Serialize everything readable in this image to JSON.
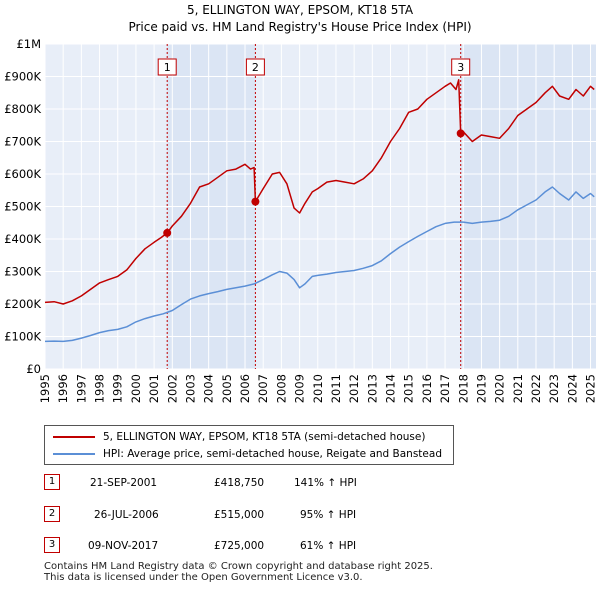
{
  "chart_data": {
    "type": "line",
    "title": "5, ELLINGTON WAY, EPSOM, KT18 5TA",
    "subtitle": "Price paid vs. HM Land Registry's House Price Index (HPI)",
    "xlabel": "",
    "ylabel": "",
    "xlim": [
      1995.0,
      2025.3
    ],
    "ylim": [
      0,
      1000000
    ],
    "grid": true,
    "y_ticks": [
      0,
      100000,
      200000,
      300000,
      400000,
      500000,
      600000,
      700000,
      800000,
      900000,
      1000000
    ],
    "y_tick_labels": [
      "£0",
      "£100K",
      "£200K",
      "£300K",
      "£400K",
      "£500K",
      "£600K",
      "£700K",
      "£800K",
      "£900K",
      "£1M"
    ],
    "x_ticks": [
      1995,
      1996,
      1997,
      1998,
      1999,
      2000,
      2001,
      2002,
      2003,
      2004,
      2005,
      2006,
      2007,
      2008,
      2009,
      2010,
      2011,
      2012,
      2013,
      2014,
      2015,
      2016,
      2017,
      2018,
      2019,
      2020,
      2021,
      2022,
      2023,
      2024,
      2025
    ],
    "x_tick_labels": [
      "1995",
      "1996",
      "1997",
      "1998",
      "1999",
      "2000",
      "2001",
      "2002",
      "2003",
      "2004",
      "2005",
      "2006",
      "2007",
      "2008",
      "2009",
      "2010",
      "2011",
      "2012",
      "2013",
      "2014",
      "2015",
      "2016",
      "2017",
      "2018",
      "2019",
      "2020",
      "2021",
      "2022",
      "2023",
      "2024",
      "2025"
    ],
    "series": [
      {
        "name": "5, ELLINGTON WAY, EPSOM, KT18 5TA (semi-detached house)",
        "color": "#c00000",
        "x": [
          1995.0,
          1995.5,
          1996.0,
          1996.5,
          1997.0,
          1997.5,
          1998.0,
          1998.5,
          1999.0,
          1999.5,
          2000.0,
          2000.5,
          2001.0,
          2001.4,
          2001.72,
          2002.0,
          2002.5,
          2003.0,
          2003.5,
          2004.0,
          2004.5,
          2005.0,
          2005.5,
          2006.0,
          2006.3,
          2006.5,
          2006.57,
          2007.0,
          2007.5,
          2007.9,
          2008.3,
          2008.7,
          2009.0,
          2009.3,
          2009.7,
          2010.0,
          2010.5,
          2011.0,
          2011.5,
          2012.0,
          2012.5,
          2013.0,
          2013.5,
          2014.0,
          2014.5,
          2015.0,
          2015.5,
          2016.0,
          2016.5,
          2017.0,
          2017.3,
          2017.6,
          2017.75,
          2017.86,
          2018.0,
          2018.5,
          2019.0,
          2019.5,
          2020.0,
          2020.5,
          2021.0,
          2021.5,
          2022.0,
          2022.5,
          2022.9,
          2023.3,
          2023.8,
          2024.2,
          2024.6,
          2025.0,
          2025.2
        ],
        "values": [
          205000,
          207000,
          200000,
          210000,
          225000,
          245000,
          265000,
          275000,
          285000,
          305000,
          340000,
          370000,
          390000,
          405000,
          418750,
          440000,
          470000,
          510000,
          560000,
          570000,
          590000,
          610000,
          615000,
          630000,
          615000,
          620000,
          515000,
          555000,
          600000,
          605000,
          570000,
          495000,
          480000,
          510000,
          545000,
          555000,
          575000,
          580000,
          575000,
          570000,
          585000,
          610000,
          650000,
          700000,
          740000,
          790000,
          800000,
          830000,
          850000,
          870000,
          880000,
          860000,
          890000,
          725000,
          730000,
          700000,
          720000,
          715000,
          710000,
          740000,
          780000,
          800000,
          820000,
          850000,
          870000,
          840000,
          830000,
          860000,
          840000,
          870000,
          860000
        ]
      },
      {
        "name": "HPI: Average price, semi-detached house, Reigate and Banstead",
        "color": "#5b8fd6",
        "x": [
          1995.0,
          1995.5,
          1996.0,
          1996.5,
          1997.0,
          1997.5,
          1998.0,
          1998.5,
          1999.0,
          1999.5,
          2000.0,
          2000.5,
          2001.0,
          2001.5,
          2002.0,
          2002.5,
          2003.0,
          2003.5,
          2004.0,
          2004.5,
          2005.0,
          2005.5,
          2006.0,
          2006.5,
          2007.0,
          2007.5,
          2007.9,
          2008.3,
          2008.7,
          2009.0,
          2009.3,
          2009.7,
          2010.0,
          2010.5,
          2011.0,
          2011.5,
          2012.0,
          2012.5,
          2013.0,
          2013.5,
          2014.0,
          2014.5,
          2015.0,
          2015.5,
          2016.0,
          2016.5,
          2017.0,
          2017.5,
          2018.0,
          2018.5,
          2019.0,
          2019.5,
          2020.0,
          2020.5,
          2021.0,
          2021.5,
          2022.0,
          2022.5,
          2022.9,
          2023.3,
          2023.8,
          2024.2,
          2024.6,
          2025.0,
          2025.2
        ],
        "values": [
          85000,
          86000,
          85000,
          88000,
          95000,
          103000,
          112000,
          118000,
          122000,
          130000,
          145000,
          155000,
          163000,
          170000,
          180000,
          198000,
          215000,
          225000,
          232000,
          238000,
          245000,
          250000,
          255000,
          262000,
          275000,
          290000,
          300000,
          295000,
          275000,
          250000,
          262000,
          285000,
          288000,
          292000,
          297000,
          300000,
          303000,
          310000,
          318000,
          333000,
          355000,
          375000,
          392000,
          408000,
          423000,
          438000,
          448000,
          452000,
          452000,
          448000,
          452000,
          454000,
          458000,
          470000,
          490000,
          505000,
          520000,
          545000,
          560000,
          540000,
          520000,
          545000,
          525000,
          540000,
          530000
        ]
      }
    ],
    "markers": [
      {
        "label": "1",
        "x": 2001.72,
        "value": 418750
      },
      {
        "label": "2",
        "x": 2006.57,
        "value": 515000
      },
      {
        "label": "3",
        "x": 2017.86,
        "value": 725000
      }
    ]
  },
  "legend": {
    "property_label": "5, ELLINGTON WAY, EPSOM, KT18 5TA (semi-detached house)",
    "hpi_label": "HPI: Average price, semi-detached house, Reigate and Banstead",
    "property_color": "#c00000",
    "hpi_color": "#5b8fd6"
  },
  "transactions": [
    {
      "num": "1",
      "date": "21-SEP-2001",
      "price": "£418,750",
      "hpi": "141% ↑ HPI"
    },
    {
      "num": "2",
      "date": "26-JUL-2006",
      "price": "£515,000",
      "hpi": "95% ↑ HPI"
    },
    {
      "num": "3",
      "date": "09-NOV-2017",
      "price": "£725,000",
      "hpi": "61% ↑ HPI"
    }
  ],
  "footer": {
    "line1": "Contains HM Land Registry data © Crown copyright and database right 2025.",
    "line2": "This data is licensed under the Open Government Licence v3.0."
  },
  "colors": {
    "plot_background": "#e8eef8",
    "shade": "#dbe5f4",
    "grid": "#ffffff",
    "property": "#c00000",
    "hpi": "#5b8fd6"
  }
}
